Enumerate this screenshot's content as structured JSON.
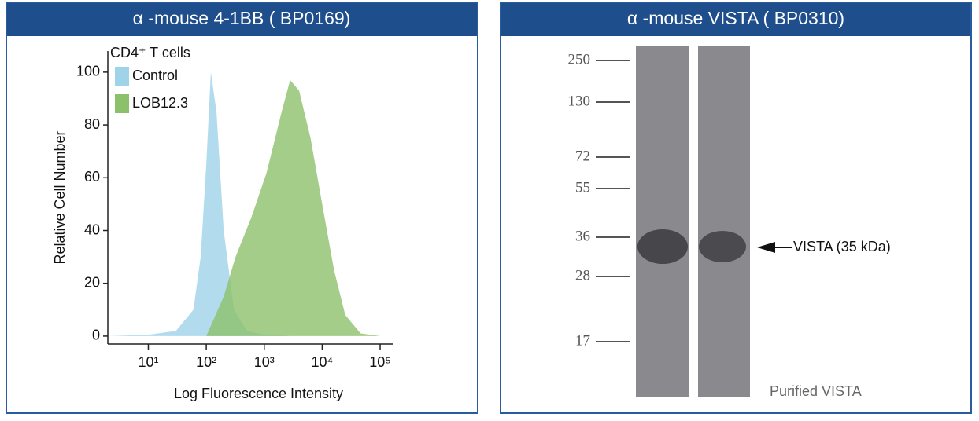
{
  "panels": [
    {
      "title": "α -mouse 4-1BB ( BP0169)"
    },
    {
      "title": "α -mouse VISTA ( BP0310)"
    }
  ],
  "chart_data": {
    "type": "area",
    "title": "CD4⁺ T cells",
    "x_label": "Log Fluorescence Intensity",
    "y_label": "Relative Cell Number",
    "log_x": true,
    "xlim": [
      2,
      170000
    ],
    "xticks": [
      {
        "value": 10,
        "label": "10¹"
      },
      {
        "value": 100,
        "label": "10²"
      },
      {
        "value": 1000,
        "label": "10³"
      },
      {
        "value": 10000,
        "label": "10⁴"
      },
      {
        "value": 100000,
        "label": "10⁵"
      }
    ],
    "ylim": [
      -3,
      108
    ],
    "yticks": [
      0,
      20,
      40,
      60,
      80,
      100
    ],
    "legend": "top-left",
    "series": [
      {
        "name": "Control",
        "color": "#9fd3ea",
        "x": [
          2,
          10,
          30,
          60,
          80,
          100,
          120,
          150,
          200,
          300,
          500,
          1000,
          3000
        ],
        "values": [
          0,
          0.5,
          2,
          10,
          30,
          65,
          100,
          85,
          40,
          10,
          2,
          0.5,
          0
        ]
      },
      {
        "name": "LOB12.3",
        "color": "#8cc06a",
        "x": [
          100,
          200,
          320,
          600,
          1100,
          2000,
          2800,
          4000,
          6300,
          10000,
          16000,
          25000,
          46000,
          100000
        ],
        "values": [
          0,
          15,
          30,
          45,
          62,
          85,
          97,
          93,
          75,
          50,
          25,
          8,
          1,
          0
        ]
      }
    ]
  },
  "blot": {
    "markers": [
      "250",
      "130",
      "72",
      "55",
      "36",
      "28",
      "17"
    ],
    "band_label": "VISTA (35 kDa)",
    "caption": "Purified VISTA"
  }
}
